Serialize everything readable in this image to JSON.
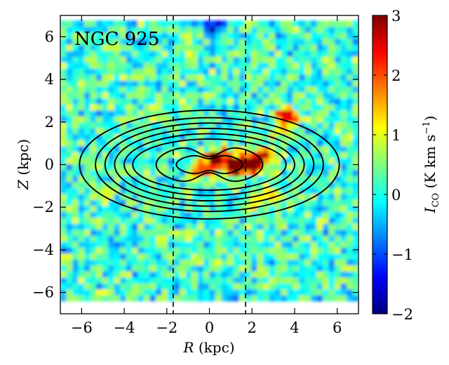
{
  "chart_data": {
    "type": "heatmap",
    "title": "NGC 925",
    "xlabel_symbol": "R",
    "xlabel_unit": " (kpc)",
    "ylabel_symbol": "Z",
    "ylabel_unit": " (kpc)",
    "xlim": [
      -7,
      7
    ],
    "ylim": [
      -7,
      7
    ],
    "x_ticks": [
      -6,
      -4,
      -2,
      0,
      2,
      4,
      6
    ],
    "y_ticks": [
      -6,
      -4,
      -2,
      0,
      2,
      4,
      6
    ],
    "x_tick_labels": [
      "−6",
      "−4",
      "−2",
      "0",
      "2",
      "4",
      "6"
    ],
    "y_tick_labels": [
      "−6",
      "−4",
      "−2",
      "0",
      "2",
      "4",
      "6"
    ],
    "data_extent": {
      "z_min": -6.4,
      "z_max": 6.5
    },
    "vertical_dashed_lines_R": [
      -1.7,
      1.7
    ],
    "colorbar": {
      "label_main": "I",
      "label_sub": "CO",
      "label_unit": " (K km s",
      "label_sup": "−1",
      "label_close": ")",
      "range": [
        -2,
        3
      ],
      "ticks": [
        -2,
        -1,
        0,
        1,
        2,
        3
      ],
      "tick_labels": [
        "−2",
        "−1",
        "0",
        "1",
        "2",
        "3"
      ],
      "colormap": "jet",
      "colors": [
        "#00007f",
        "#0000ff",
        "#007fff",
        "#00ffff",
        "#7fff7f",
        "#ffff00",
        "#ff7f00",
        "#ff0000",
        "#7f0000"
      ]
    },
    "emission_features": [
      {
        "R": 0.1,
        "Z": 0.2,
        "level": 2.0
      },
      {
        "R": 0.6,
        "Z": 0.4,
        "level": 2.3
      },
      {
        "R": 1.1,
        "Z": -0.2,
        "level": 2.5
      },
      {
        "R": 1.6,
        "Z": 0.1,
        "level": 2.6
      },
      {
        "R": 2.2,
        "Z": 0.0,
        "level": 2.9
      },
      {
        "R": 2.8,
        "Z": 0.5,
        "level": 1.8
      },
      {
        "R": 3.6,
        "Z": 2.3,
        "level": 2.5
      },
      {
        "R": -0.4,
        "Z": -0.3,
        "level": 1.6
      },
      {
        "R": 3.3,
        "Z": 1.6,
        "level": 1.1
      },
      {
        "R": 2.7,
        "Z": -1.4,
        "level": 1.0
      },
      {
        "R": -2.5,
        "Z": 2.4,
        "level": 0.9
      },
      {
        "R": 0.3,
        "Z": 6.5,
        "level": -1.6
      },
      {
        "R": 2.0,
        "Z": -2.0,
        "level": 0.9
      }
    ],
    "model_contours": {
      "outer_ellipses": [
        {
          "a": 6.1,
          "b": 2.55
        },
        {
          "a": 5.35,
          "b": 2.2
        },
        {
          "a": 4.9,
          "b": 1.95
        },
        {
          "a": 4.45,
          "b": 1.7
        },
        {
          "a": 4.0,
          "b": 1.45
        },
        {
          "a": 3.6,
          "b": 1.2
        }
      ],
      "inner_peanuts": [
        {
          "a": 2.5,
          "b": 0.95,
          "waist": 0.6
        },
        {
          "a": 1.55,
          "b": 0.5,
          "waist": 0.45
        }
      ]
    }
  }
}
